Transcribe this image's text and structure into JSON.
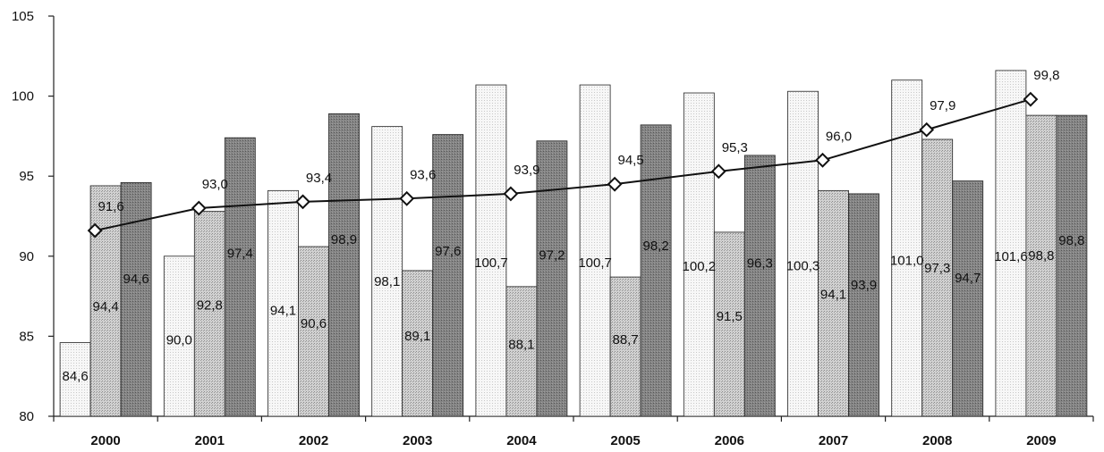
{
  "chart_data": {
    "type": "bar",
    "categories": [
      "2000",
      "2001",
      "2002",
      "2003",
      "2004",
      "2005",
      "2006",
      "2007",
      "2008",
      "2009"
    ],
    "ylim": [
      80,
      105
    ],
    "yticks": [
      80,
      85,
      90,
      95,
      100,
      105
    ],
    "grid": false,
    "legend": "none",
    "series": [
      {
        "kind": "bar",
        "fill": "#f6f6f6",
        "values": [
          84.6,
          90.0,
          94.1,
          98.1,
          100.7,
          100.7,
          100.2,
          100.3,
          101.0,
          101.6
        ],
        "labels": [
          "84,6",
          "90,0",
          "94,1",
          "98,1",
          "100,7",
          "100,7",
          "100,2",
          "100,3",
          "101,0",
          "101,6"
        ]
      },
      {
        "kind": "bar",
        "fill": "#c9c9c9",
        "values": [
          94.4,
          92.8,
          90.6,
          89.1,
          88.1,
          88.7,
          91.5,
          94.1,
          97.3,
          98.8
        ],
        "labels": [
          "94,4",
          "92,8",
          "90,6",
          "89,1",
          "88,1",
          "88,7",
          "91,5",
          "94,1",
          "97,3",
          "98,8"
        ]
      },
      {
        "kind": "bar",
        "fill": "#7a7a7a",
        "values": [
          94.6,
          97.4,
          98.9,
          97.6,
          97.2,
          98.2,
          96.3,
          93.9,
          94.7,
          98.8
        ],
        "labels": [
          "94,6",
          "97,4",
          "98,9",
          "97,6",
          "97,2",
          "98,2",
          "96,3",
          "93,9",
          "94,7",
          "98,8"
        ]
      },
      {
        "kind": "line",
        "color": "#111111",
        "marker": "diamond",
        "values": [
          91.6,
          93.0,
          93.4,
          93.6,
          93.9,
          94.5,
          95.3,
          96.0,
          97.9,
          99.8
        ],
        "labels": [
          "91,6",
          "93,0",
          "93,4",
          "93,6",
          "93,9",
          "94,5",
          "95,3",
          "96,0",
          "97,9",
          "99,8"
        ]
      }
    ]
  }
}
